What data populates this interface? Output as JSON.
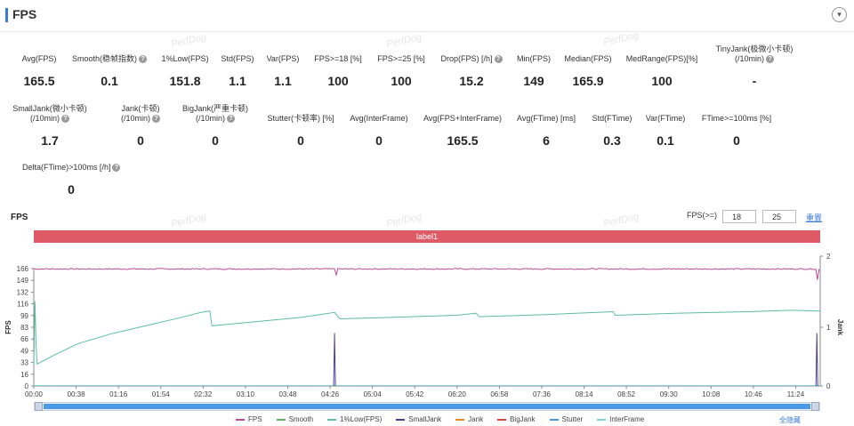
{
  "header": {
    "title": "FPS",
    "collapse_icon": "▾"
  },
  "watermark": "PerfDog",
  "metrics_row1": [
    {
      "label": "Avg(FPS)",
      "value": "165.5",
      "help": false
    },
    {
      "label": "Smooth(稳帧指数)",
      "value": "0.1",
      "help": true
    },
    {
      "label": "1%Low(FPS)",
      "value": "151.8",
      "help": false
    },
    {
      "label": "Std(FPS)",
      "value": "1.1",
      "help": false
    },
    {
      "label": "Var(FPS)",
      "value": "1.1",
      "help": false
    },
    {
      "label": "FPS>=18 [%]",
      "value": "100",
      "help": false
    },
    {
      "label": "FPS>=25 [%]",
      "value": "100",
      "help": false
    },
    {
      "label": "Drop(FPS) [/h]",
      "value": "15.2",
      "help": true
    },
    {
      "label": "Min(FPS)",
      "value": "149",
      "help": false
    },
    {
      "label": "Median(FPS)",
      "value": "165.9",
      "help": false
    },
    {
      "label": "MedRange(FPS)[%]",
      "value": "100",
      "help": false
    },
    {
      "label": "TinyJank(极微小卡顿)",
      "label2": "(/10min)",
      "value": "-",
      "help": true
    }
  ],
  "metrics_row2": [
    {
      "label": "SmallJank(微小卡顿)",
      "label2": "(/10min)",
      "value": "1.7",
      "help": true
    },
    {
      "label": "Jank(卡顿)",
      "label2": "(/10min)",
      "value": "0",
      "help": true
    },
    {
      "label": "BigJank(严重卡顿)",
      "label2": "(/10min)",
      "value": "0",
      "help": true
    },
    {
      "label": "Stutter(卡顿率) [%]",
      "value": "0",
      "help": false
    },
    {
      "label": "Avg(InterFrame)",
      "value": "0",
      "help": false
    },
    {
      "label": "Avg(FPS+InterFrame)",
      "value": "165.5",
      "help": false
    },
    {
      "label": "Avg(FTime) [ms]",
      "value": "6",
      "help": false
    },
    {
      "label": "Std(FTime)",
      "value": "0.3",
      "help": false
    },
    {
      "label": "Var(FTime)",
      "value": "0.1",
      "help": false
    },
    {
      "label": "FTime>=100ms [%]",
      "value": "0",
      "help": false
    }
  ],
  "metrics_row3": [
    {
      "label": "Delta(FTime)>100ms [/h]",
      "value": "0",
      "help": true
    }
  ],
  "chart_header": {
    "title": "FPS",
    "filter_label": "FPS(>=)",
    "filter_value_1": "18",
    "filter_value_2": "25",
    "filter_link": "重置"
  },
  "label_band": "label1",
  "unselect_all": "全隐藏",
  "chart_data": {
    "type": "line",
    "y_label": "FPS",
    "y2_label": "Jank",
    "y_ticks": [
      "0",
      "16",
      "33",
      "49",
      "66",
      "83",
      "99",
      "116",
      "132",
      "149",
      "166"
    ],
    "y_range": [
      0,
      166
    ],
    "y2_ticks": [
      "0",
      "1",
      "2"
    ],
    "y2_range": [
      0,
      2
    ],
    "x_ticks": [
      "00:00",
      "00:38",
      "01:16",
      "01:54",
      "02:32",
      "03:10",
      "03:48",
      "04:26",
      "05:04",
      "05:42",
      "06:20",
      "06:58",
      "07:36",
      "08:14",
      "08:52",
      "09:30",
      "10:08",
      "10:46",
      "11:24"
    ],
    "x_range_seconds": [
      0,
      706
    ],
    "series": [
      {
        "name": "FPS",
        "color": "#c0479a",
        "level": 165.5,
        "dips": [
          [
            271,
            157
          ],
          [
            703,
            150
          ]
        ]
      },
      {
        "name": "Smooth",
        "color": "#5fb35b",
        "level": 0
      },
      {
        "name": "1%Low(FPS)",
        "color": "#5bbf9b",
        "points": [
          [
            0,
            30
          ],
          [
            1,
            120
          ],
          [
            2,
            60
          ],
          [
            3,
            31
          ],
          [
            20,
            45
          ],
          [
            40,
            60
          ],
          [
            70,
            74
          ],
          [
            100,
            85
          ],
          [
            130,
            96
          ],
          [
            150,
            104
          ],
          [
            158,
            106
          ],
          [
            160,
            85
          ],
          [
            200,
            91
          ],
          [
            240,
            97
          ],
          [
            270,
            104
          ],
          [
            275,
            95
          ],
          [
            320,
            97
          ],
          [
            380,
            100
          ],
          [
            397,
            103
          ],
          [
            400,
            98
          ],
          [
            460,
            101
          ],
          [
            520,
            105
          ],
          [
            522,
            100
          ],
          [
            580,
            103
          ],
          [
            640,
            105
          ],
          [
            680,
            107
          ],
          [
            706,
            106
          ]
        ]
      },
      {
        "name": "SmallJank",
        "color": "#4b3e9c",
        "spikes": [
          [
            270,
            0.9
          ],
          [
            703,
            0.9
          ]
        ]
      },
      {
        "name": "Jank",
        "color": "#e8892b",
        "level": 0
      },
      {
        "name": "BigJank",
        "color": "#d0473b",
        "level": 0
      },
      {
        "name": "Stutter",
        "color": "#4a9ae8",
        "level": 0
      },
      {
        "name": "InterFrame",
        "color": "#7fd3e0",
        "level": 0
      }
    ]
  }
}
